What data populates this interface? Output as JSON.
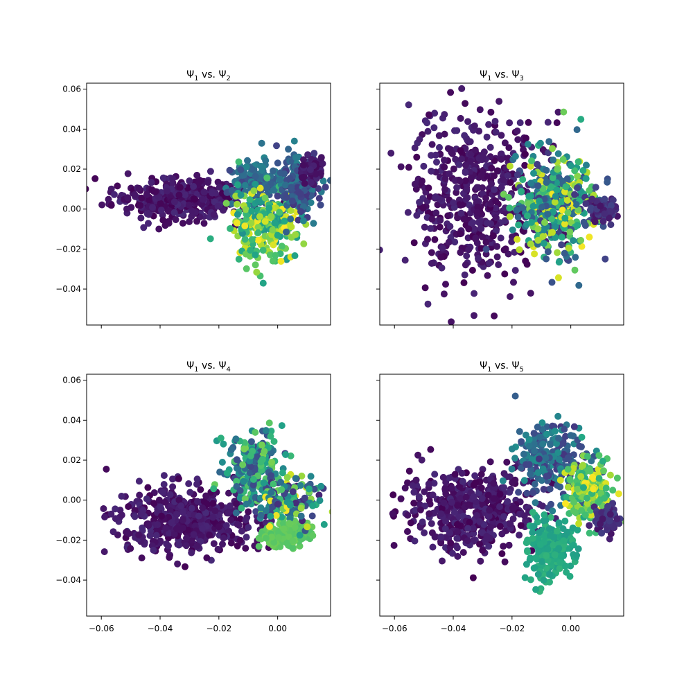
{
  "figure": {
    "background": "#ffffff",
    "colormap": "viridis"
  },
  "chart_data": [
    {
      "type": "scatter",
      "title": {
        "base": "Ψ",
        "sub1": "1",
        "mid": " vs. Ψ",
        "sub2": "2"
      },
      "xlim": [
        -0.065,
        0.018
      ],
      "ylim": [
        -0.058,
        0.063
      ],
      "xticks": [
        -0.06,
        -0.04,
        -0.02,
        0.0
      ],
      "xtick_labels": [
        "−0.06",
        "−0.04",
        "−0.02",
        "0.00"
      ],
      "show_xtick_labels": false,
      "yticks": [
        -0.04,
        -0.02,
        0.0,
        0.02,
        0.04,
        0.06
      ],
      "ytick_labels": [
        "−0.04",
        "−0.02",
        "0.00",
        "0.02",
        "0.04",
        "0.06"
      ],
      "show_ytick_labels": true,
      "clusters": [
        {
          "cx": -0.034,
          "cy": 0.005,
          "sx": 0.011,
          "sy": 0.005,
          "n": 420,
          "c": [
            0.0,
            0.12
          ]
        },
        {
          "cx": -0.007,
          "cy": 0.014,
          "sx": 0.006,
          "sy": 0.006,
          "n": 160,
          "c": [
            0.2,
            0.45
          ]
        },
        {
          "cx": -0.004,
          "cy": -0.008,
          "sx": 0.006,
          "sy": 0.009,
          "n": 260,
          "c": [
            0.5,
            1.0
          ]
        },
        {
          "cx": 0.008,
          "cy": 0.012,
          "sx": 0.004,
          "sy": 0.008,
          "n": 160,
          "c": [
            0.15,
            0.45
          ]
        },
        {
          "cx": 0.012,
          "cy": 0.02,
          "sx": 0.0015,
          "sy": 0.003,
          "n": 70,
          "c": [
            0.02,
            0.1
          ]
        }
      ]
    },
    {
      "type": "scatter",
      "title": {
        "base": "Ψ",
        "sub1": "1",
        "mid": " vs. Ψ",
        "sub2": "3"
      },
      "xlim": [
        -0.065,
        0.018
      ],
      "ylim": [
        -0.058,
        0.063
      ],
      "xticks": [
        -0.06,
        -0.04,
        -0.02,
        0.0
      ],
      "xtick_labels": [
        "−0.06",
        "−0.04",
        "−0.02",
        "0.00"
      ],
      "show_xtick_labels": false,
      "yticks": [
        -0.04,
        -0.02,
        0.0,
        0.02,
        0.04,
        0.06
      ],
      "ytick_labels": [
        "−0.04",
        "−0.02",
        "0.00",
        "0.02",
        "0.04",
        "0.06"
      ],
      "show_ytick_labels": false,
      "clusters": [
        {
          "cx": -0.032,
          "cy": 0.005,
          "sx": 0.011,
          "sy": 0.022,
          "n": 520,
          "c": [
            0.0,
            0.12
          ]
        },
        {
          "cx": -0.005,
          "cy": 0.002,
          "sx": 0.007,
          "sy": 0.013,
          "n": 420,
          "c": [
            0.15,
            1.0
          ]
        },
        {
          "cx": 0.011,
          "cy": 0.0,
          "sx": 0.002,
          "sy": 0.003,
          "n": 80,
          "c": [
            0.05,
            0.2
          ]
        }
      ]
    },
    {
      "type": "scatter",
      "title": {
        "base": "Ψ",
        "sub1": "1",
        "mid": " vs. Ψ",
        "sub2": "4"
      },
      "xlim": [
        -0.065,
        0.018
      ],
      "ylim": [
        -0.058,
        0.063
      ],
      "xticks": [
        -0.06,
        -0.04,
        -0.02,
        0.0
      ],
      "xtick_labels": [
        "−0.06",
        "−0.04",
        "−0.02",
        "0.00"
      ],
      "show_xtick_labels": true,
      "yticks": [
        -0.04,
        -0.02,
        0.0,
        0.02,
        0.04,
        0.06
      ],
      "ytick_labels": [
        "−0.04",
        "−0.02",
        "0.00",
        "0.02",
        "0.04",
        "0.06"
      ],
      "show_ytick_labels": true,
      "clusters": [
        {
          "cx": -0.03,
          "cy": -0.01,
          "sx": 0.012,
          "sy": 0.008,
          "n": 480,
          "c": [
            0.0,
            0.12
          ]
        },
        {
          "cx": -0.008,
          "cy": 0.015,
          "sx": 0.005,
          "sy": 0.01,
          "n": 220,
          "c": [
            0.2,
            0.8
          ]
        },
        {
          "cx": 0.003,
          "cy": -0.017,
          "sx": 0.004,
          "sy": 0.003,
          "n": 220,
          "c": [
            0.72,
            0.78
          ]
        },
        {
          "cx": 0.004,
          "cy": 0.0,
          "sx": 0.005,
          "sy": 0.007,
          "n": 140,
          "c": [
            0.1,
            1.0
          ]
        }
      ]
    },
    {
      "type": "scatter",
      "title": {
        "base": "Ψ",
        "sub1": "1",
        "mid": " vs. Ψ",
        "sub2": "5"
      },
      "xlim": [
        -0.065,
        0.018
      ],
      "ylim": [
        -0.058,
        0.063
      ],
      "xticks": [
        -0.06,
        -0.04,
        -0.02,
        0.0
      ],
      "xtick_labels": [
        "−0.06",
        "−0.04",
        "−0.02",
        "0.00"
      ],
      "show_xtick_labels": true,
      "yticks": [
        -0.04,
        -0.02,
        0.0,
        0.02,
        0.04,
        0.06
      ],
      "ytick_labels": [
        "−0.04",
        "−0.02",
        "0.00",
        "0.02",
        "0.04",
        "0.06"
      ],
      "show_ytick_labels": false,
      "clusters": [
        {
          "cx": -0.034,
          "cy": -0.005,
          "sx": 0.011,
          "sy": 0.01,
          "n": 480,
          "c": [
            0.0,
            0.12
          ]
        },
        {
          "cx": -0.007,
          "cy": 0.02,
          "sx": 0.006,
          "sy": 0.009,
          "n": 220,
          "c": [
            0.15,
            0.5
          ]
        },
        {
          "cx": -0.007,
          "cy": -0.025,
          "sx": 0.004,
          "sy": 0.008,
          "n": 200,
          "c": [
            0.55,
            0.65
          ]
        },
        {
          "cx": 0.006,
          "cy": 0.005,
          "sx": 0.004,
          "sy": 0.007,
          "n": 180,
          "c": [
            0.6,
            1.0
          ]
        },
        {
          "cx": 0.012,
          "cy": -0.01,
          "sx": 0.002,
          "sy": 0.003,
          "n": 70,
          "c": [
            0.05,
            0.2
          ]
        }
      ]
    }
  ]
}
